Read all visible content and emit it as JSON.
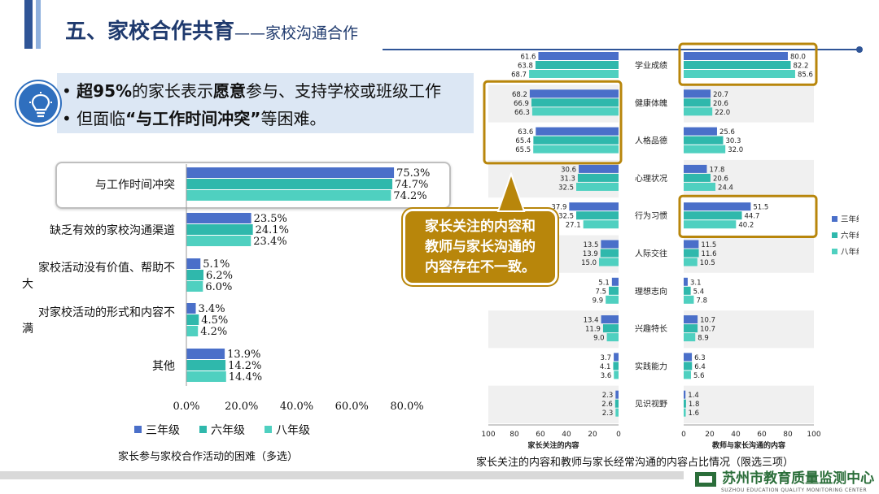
{
  "header": {
    "title": "五、家校合作共育",
    "subtitle": "——家校沟通合作"
  },
  "callout": {
    "line1_prefix": "超95%",
    "line1_middle": "的家长表示",
    "line1_bold": "愿意",
    "line1_suffix": "参与、支持学校或班级工作",
    "line2_prefix": "但面临",
    "line2_bold": "“与工作时间冲突”",
    "line2_suffix": "等困难。"
  },
  "gold_callout": {
    "line1": "家长关注的内容和",
    "line2": "教师与家长沟通的",
    "line3": "内容存在不一致。"
  },
  "footer": {
    "logo_text": "苏州市教育质量监测中心",
    "logo_sub": "SUZHOU EDUCATION QUALITY MONITORING CENTER"
  },
  "colors": {
    "grade3": "#4a6fc9",
    "grade6": "#2fb8ac",
    "grade8": "#4fd0c0",
    "gold": "#b8860b",
    "title": "#1f3a6e"
  },
  "chart_data": [
    {
      "type": "bar",
      "orientation": "horizontal",
      "title": "家长参与家校合作活动的困难（多选）",
      "categories": [
        "与工作时间冲突",
        "缺乏有效的家校沟通渠道",
        "家校活动没有价值、帮助不大",
        "对家校活动的形式和内容不满",
        "其他"
      ],
      "category_lines": [
        [
          "与工作时间冲突"
        ],
        [
          "缺乏有效的家校沟通渠道"
        ],
        [
          "家校活动没有价值、帮助不",
          "大"
        ],
        [
          "对家校活动的形式和内容不",
          "满"
        ],
        [
          "其他"
        ]
      ],
      "series": [
        {
          "name": "三年级",
          "values": [
            75.3,
            23.5,
            5.1,
            3.4,
            13.9
          ],
          "labels": [
            "75.3%",
            "23.5%",
            "5.1%",
            "3.4%",
            "13.9%"
          ]
        },
        {
          "name": "六年级",
          "values": [
            74.7,
            24.1,
            6.2,
            4.5,
            14.2
          ],
          "labels": [
            "74.7%",
            "24.1%",
            "6.2%",
            "4.5%",
            "14.2%"
          ]
        },
        {
          "name": "八年级",
          "values": [
            74.2,
            23.4,
            6.0,
            4.2,
            14.4
          ],
          "labels": [
            "74.2%",
            "23.4%",
            "6.0%",
            "4.2%",
            "14.4%"
          ]
        }
      ],
      "xlim": [
        0,
        80
      ],
      "xticks": [
        "0.0%",
        "20.0%",
        "40.0%",
        "60.0%",
        "80.0%"
      ],
      "legend": [
        "三年级",
        "六年级",
        "八年级"
      ],
      "legend_position": "bottom"
    },
    {
      "type": "bar",
      "orientation": "butterfly",
      "title": "家长关注的内容和教师与家长经常沟通的内容占比情况（限选三项）",
      "categories": [
        "学业成绩",
        "健康体魄",
        "人格品德",
        "心理状况",
        "行为习惯",
        "人际交往",
        "理想志向",
        "兴趣特长",
        "实践能力",
        "见识视野"
      ],
      "left_label": "家长关注的内容",
      "right_label": "教师与家长沟通的内容",
      "left_series": [
        {
          "name": "三年级",
          "values": [
            61.6,
            68.2,
            63.6,
            30.6,
            37.9,
            13.5,
            5.1,
            13.4,
            3.7,
            2.3
          ]
        },
        {
          "name": "六年级",
          "values": [
            63.8,
            66.9,
            65.4,
            31.3,
            32.5,
            13.9,
            7.5,
            11.9,
            4.1,
            2.6
          ]
        },
        {
          "name": "八年级",
          "values": [
            68.7,
            66.3,
            65.5,
            32.5,
            27.1,
            15.0,
            9.9,
            9.0,
            3.6,
            2.3
          ]
        }
      ],
      "right_series": [
        {
          "name": "三年级",
          "values": [
            80.0,
            20.7,
            25.6,
            17.8,
            51.5,
            11.5,
            3.1,
            10.7,
            6.3,
            1.4
          ]
        },
        {
          "name": "六年级",
          "values": [
            82.2,
            20.6,
            30.3,
            20.6,
            44.7,
            11.6,
            5.4,
            10.7,
            6.4,
            1.8
          ]
        },
        {
          "name": "八年级",
          "values": [
            85.6,
            22.0,
            32.0,
            24.4,
            40.2,
            10.5,
            7.8,
            8.9,
            5.6,
            1.6
          ]
        }
      ],
      "left_xticks": [
        "100",
        "80",
        "60",
        "40",
        "20",
        "0"
      ],
      "right_xticks": [
        "0",
        "20",
        "40",
        "60",
        "80",
        "100"
      ],
      "xlim": [
        0,
        100
      ],
      "legend": [
        "三年级",
        "六年级",
        "八年级"
      ],
      "legend_position": "right"
    }
  ]
}
